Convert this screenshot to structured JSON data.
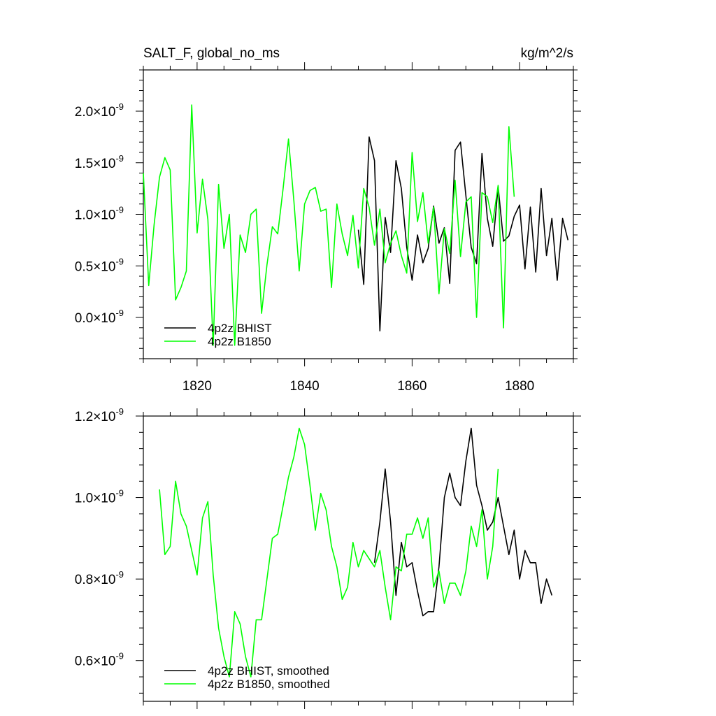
{
  "header": {
    "left_title": "SALT_F, global_no_ms",
    "right_units": "kg/m^2/s"
  },
  "chart_data": [
    {
      "type": "line",
      "xlim": [
        1810,
        1890
      ],
      "ylim": [
        -4e-10,
        2.4e-09
      ],
      "xticks": [
        1820,
        1840,
        1860,
        1880
      ],
      "yticks": [
        0.0,
        0.5,
        1.0,
        1.5,
        2.0
      ],
      "ytick_labels": [
        "0.0",
        "0.5",
        "1.0",
        "1.5",
        "2.0"
      ],
      "ytick_multiplier": "×10",
      "ytick_exponent": "-9",
      "show_x_tick_labels": true,
      "legend_placement": "bottom-left",
      "series": [
        {
          "name": "4p2z BHIST",
          "color": "#000000",
          "x": [
            1850,
            1851,
            1852,
            1853,
            1854,
            1855,
            1856,
            1857,
            1858,
            1859,
            1860,
            1861,
            1862,
            1863,
            1864,
            1865,
            1866,
            1867,
            1868,
            1869,
            1870,
            1871,
            1872,
            1873,
            1874,
            1875,
            1876,
            1877,
            1878,
            1879,
            1880,
            1881,
            1882,
            1883,
            1884,
            1885,
            1886,
            1887,
            1888,
            1889
          ],
          "y": [
            0.85,
            0.32,
            1.75,
            1.52,
            -0.13,
            0.97,
            0.63,
            1.52,
            1.25,
            0.68,
            0.36,
            0.8,
            0.53,
            0.67,
            1.08,
            0.72,
            0.87,
            0.33,
            1.62,
            1.7,
            1.18,
            0.68,
            0.52,
            1.59,
            0.96,
            0.69,
            1.27,
            0.74,
            0.79,
            0.98,
            1.09,
            0.47,
            1.07,
            0.44,
            1.25,
            0.6,
            0.96,
            0.36,
            0.96,
            0.75
          ]
        },
        {
          "name": "4p2z B1850",
          "color": "#00ff00",
          "x": [
            1810,
            1811,
            1812,
            1813,
            1814,
            1815,
            1816,
            1817,
            1818,
            1819,
            1820,
            1821,
            1822,
            1823,
            1824,
            1825,
            1826,
            1827,
            1828,
            1829,
            1830,
            1831,
            1832,
            1833,
            1834,
            1835,
            1836,
            1837,
            1838,
            1839,
            1840,
            1841,
            1842,
            1843,
            1844,
            1845,
            1846,
            1847,
            1848,
            1849,
            1850,
            1851,
            1852,
            1853,
            1854,
            1855,
            1856,
            1857,
            1858,
            1859,
            1860,
            1861,
            1862,
            1863,
            1864,
            1865,
            1866,
            1867,
            1868,
            1869,
            1870,
            1871,
            1872,
            1873,
            1874,
            1875,
            1876,
            1877,
            1878,
            1879
          ],
          "y": [
            1.4,
            0.31,
            0.9,
            1.36,
            1.55,
            1.43,
            0.17,
            0.29,
            0.45,
            2.06,
            0.82,
            1.34,
            0.95,
            -0.27,
            1.29,
            0.67,
            1.0,
            -0.27,
            0.8,
            0.63,
            1.0,
            1.05,
            0.04,
            0.51,
            0.88,
            0.81,
            1.25,
            1.73,
            1.13,
            0.45,
            1.1,
            1.23,
            1.26,
            1.03,
            1.05,
            0.29,
            1.1,
            0.81,
            0.6,
            0.99,
            0.48,
            1.25,
            1.07,
            0.7,
            1.05,
            0.53,
            0.72,
            0.84,
            0.6,
            0.43,
            1.6,
            0.93,
            1.21,
            0.72,
            1.07,
            0.23,
            0.86,
            0.62,
            1.33,
            0.59,
            1.12,
            1.17,
            0.0,
            1.21,
            1.17,
            0.92,
            1.28,
            -0.1,
            1.85,
            1.17
          ]
        }
      ]
    },
    {
      "type": "line",
      "xlim": [
        1810,
        1890
      ],
      "ylim": [
        5e-10,
        1.2e-09
      ],
      "xticks": [
        1820,
        1840,
        1860,
        1880
      ],
      "yticks": [
        0.6,
        0.8,
        1.0,
        1.2
      ],
      "ytick_labels": [
        "0.6",
        "0.8",
        "1.0",
        "1.2"
      ],
      "ytick_multiplier": "×10",
      "ytick_exponent": "-9",
      "show_x_tick_labels": false,
      "legend_placement": "bottom-left",
      "series": [
        {
          "name": "4p2z BHIST, smoothed",
          "color": "#000000",
          "x": [
            1853,
            1854,
            1855,
            1856,
            1857,
            1858,
            1859,
            1860,
            1861,
            1862,
            1863,
            1864,
            1865,
            1866,
            1867,
            1868,
            1869,
            1870,
            1871,
            1872,
            1873,
            1874,
            1875,
            1876,
            1877,
            1878,
            1879,
            1880,
            1881,
            1882,
            1883,
            1884,
            1885,
            1886
          ],
          "y": [
            0.84,
            0.94,
            1.07,
            0.94,
            0.76,
            0.89,
            0.83,
            0.84,
            0.77,
            0.71,
            0.72,
            0.72,
            0.83,
            1.0,
            1.06,
            1.0,
            0.98,
            1.09,
            1.17,
            1.03,
            0.98,
            0.92,
            0.94,
            1.0,
            0.93,
            0.86,
            0.92,
            0.8,
            0.87,
            0.84,
            0.84,
            0.74,
            0.8,
            0.76
          ]
        },
        {
          "name": "4p2z B1850, smoothed",
          "color": "#00ff00",
          "x": [
            1813,
            1814,
            1815,
            1816,
            1817,
            1818,
            1819,
            1820,
            1821,
            1822,
            1823,
            1824,
            1825,
            1826,
            1827,
            1828,
            1829,
            1830,
            1831,
            1832,
            1833,
            1834,
            1835,
            1836,
            1837,
            1838,
            1839,
            1840,
            1841,
            1842,
            1843,
            1844,
            1845,
            1846,
            1847,
            1848,
            1849,
            1850,
            1851,
            1852,
            1853,
            1854,
            1855,
            1856,
            1857,
            1858,
            1859,
            1860,
            1861,
            1862,
            1863,
            1864,
            1865,
            1866,
            1867,
            1868,
            1869,
            1870,
            1871,
            1872,
            1873,
            1874,
            1875,
            1876
          ],
          "y": [
            1.02,
            0.86,
            0.88,
            1.04,
            0.96,
            0.93,
            0.87,
            0.81,
            0.95,
            0.99,
            0.81,
            0.68,
            0.61,
            0.56,
            0.72,
            0.69,
            0.61,
            0.56,
            0.7,
            0.7,
            0.8,
            0.9,
            0.91,
            0.98,
            1.05,
            1.1,
            1.17,
            1.13,
            1.03,
            0.92,
            1.01,
            0.97,
            0.88,
            0.83,
            0.75,
            0.78,
            0.89,
            0.83,
            0.87,
            0.85,
            0.83,
            0.87,
            0.78,
            0.7,
            0.83,
            0.82,
            0.91,
            0.91,
            0.95,
            0.9,
            0.95,
            0.78,
            0.82,
            0.74,
            0.79,
            0.79,
            0.76,
            0.82,
            0.93,
            0.88,
            0.97,
            0.8,
            0.88,
            1.07
          ]
        }
      ]
    }
  ]
}
